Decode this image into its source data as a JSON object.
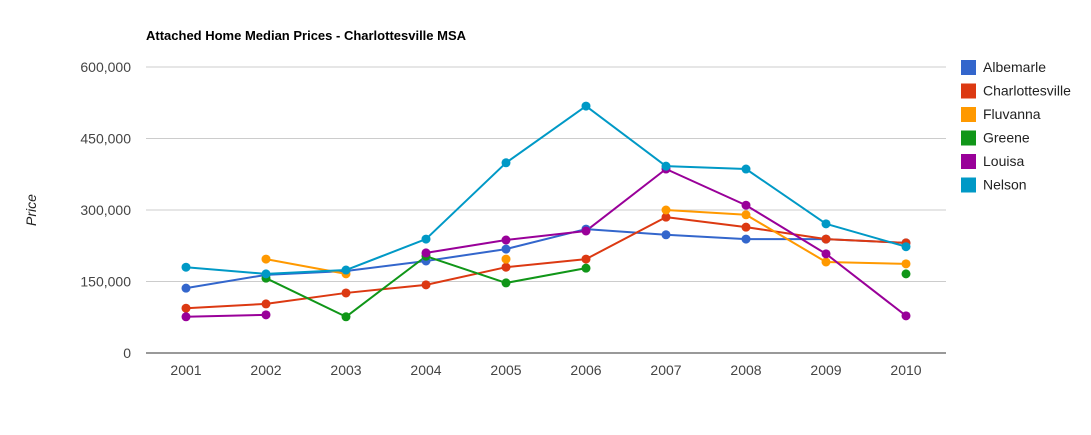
{
  "chart_data": {
    "type": "line",
    "title": "Attached Home Median Prices - Charlottesville MSA",
    "xlabel": "",
    "ylabel": "Price",
    "ylim": [
      0,
      600000
    ],
    "yticks": [
      0,
      150000,
      300000,
      450000,
      600000
    ],
    "ytick_labels": [
      "0",
      "150,000",
      "300,000",
      "450,000",
      "600,000"
    ],
    "categories": [
      "2001",
      "2002",
      "2003",
      "2004",
      "2005",
      "2006",
      "2007",
      "2008",
      "2009",
      "2010"
    ],
    "grid": true,
    "legend_position": "right",
    "series": [
      {
        "name": "Albemarle",
        "color": "#3366cc",
        "values": [
          136000,
          164000,
          172000,
          193000,
          218000,
          260000,
          248000,
          239000,
          239000,
          231000
        ]
      },
      {
        "name": "Charlottesville",
        "color": "#dc3912",
        "values": [
          94000,
          103000,
          126000,
          143000,
          180000,
          197000,
          285000,
          264000,
          239000,
          231000
        ]
      },
      {
        "name": "Fluvanna",
        "color": "#ff9900",
        "values": [
          null,
          197000,
          166000,
          null,
          197000,
          null,
          300000,
          290000,
          191000,
          187000
        ]
      },
      {
        "name": "Greene",
        "color": "#109618",
        "values": [
          null,
          157000,
          76000,
          203000,
          147000,
          178000,
          null,
          null,
          null,
          166000
        ]
      },
      {
        "name": "Louisa",
        "color": "#990099",
        "values": [
          76000,
          80000,
          null,
          210000,
          237000,
          256000,
          386000,
          310000,
          208000,
          78000
        ]
      },
      {
        "name": "Nelson",
        "color": "#0099c6",
        "values": [
          180000,
          166000,
          174000,
          239000,
          399000,
          518000,
          392000,
          386000,
          271000,
          223000
        ]
      }
    ]
  }
}
